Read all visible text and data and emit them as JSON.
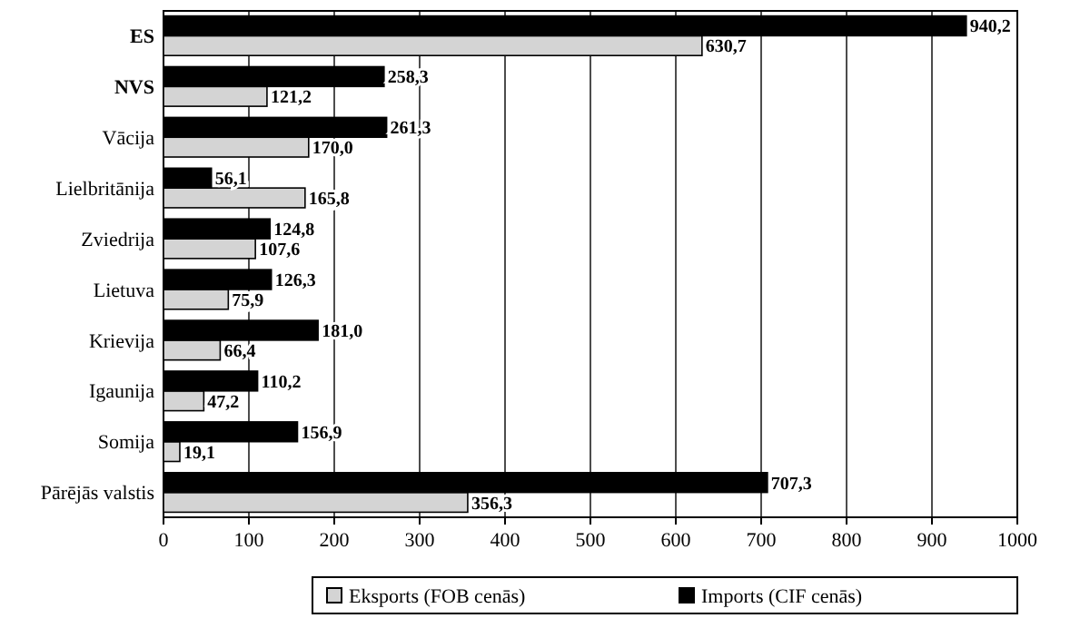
{
  "chart_data": {
    "type": "bar",
    "orientation": "horizontal",
    "categories": [
      "ES",
      "NVS",
      "Vācija",
      "Lielbritānija",
      "Zviedrija",
      "Lietuva",
      "Krievija",
      "Igaunija",
      "Somija",
      "Pārējās valstis"
    ],
    "series": [
      {
        "name": "Eksports (FOB cenās)",
        "color": "#d4d4d4",
        "values": [
          630.7,
          121.2,
          170.0,
          165.8,
          107.6,
          75.9,
          66.4,
          47.2,
          19.1,
          356.3
        ],
        "value_labels": [
          "630,7",
          "121,2",
          "170,0",
          "165,8",
          "107,6",
          "75,9",
          "66,4",
          "47,2",
          "19,1",
          "356,3"
        ]
      },
      {
        "name": "Imports (CIF cenās)",
        "color": "#000000",
        "values": [
          940.2,
          258.3,
          261.3,
          56.1,
          124.8,
          126.3,
          181.0,
          110.2,
          156.9,
          707.3
        ],
        "value_labels": [
          "940,2",
          "258,3",
          "261,3",
          "56,1",
          "124,8",
          "126,3",
          "181,0",
          "110,2",
          "156,9",
          "707,3"
        ]
      }
    ],
    "xlim": [
      0,
      1000
    ],
    "xticks": [
      0,
      100,
      200,
      300,
      400,
      500,
      600,
      700,
      800,
      900,
      1000
    ],
    "grid": "x",
    "legend": "bottom"
  }
}
